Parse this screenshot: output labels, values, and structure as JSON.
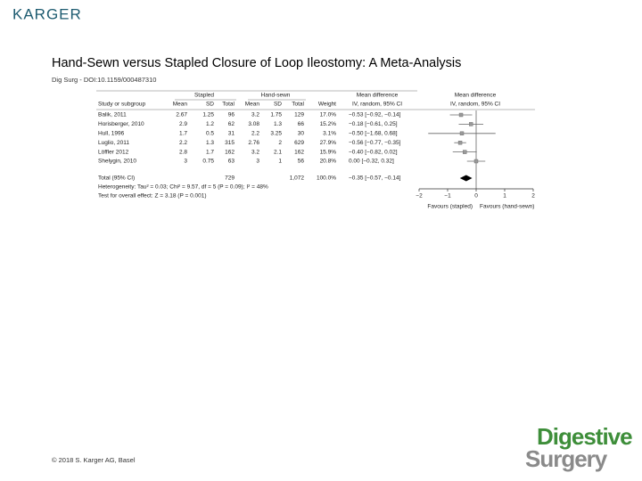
{
  "logo": "KARGER",
  "title": "Hand-Sewn versus Stapled Closure of Loop Ileostomy: A Meta-Analysis",
  "citation": "Dig Surg - DOI:10.1159/000487310",
  "forest": {
    "group_headers": [
      "Stapled",
      "Hand-sewn",
      "Mean difference",
      "Mean difference"
    ],
    "column_headers": [
      "Study or subgroup",
      "Mean",
      "SD",
      "Total",
      "Mean",
      "SD",
      "Total",
      "Weight",
      "IV, random, 95% CI",
      "IV, random, 95% CI"
    ],
    "rows": [
      [
        "Balik, 2011",
        "2.67",
        "1.25",
        "96",
        "3.2",
        "1.75",
        "129",
        "17.0%",
        "−0.53 [−0.92, −0.14]"
      ],
      [
        "Horisberger, 2010",
        "2.9",
        "1.2",
        "62",
        "3.08",
        "1.3",
        "66",
        "15.2%",
        "−0.18 [−0.61, 0.25]"
      ],
      [
        "Hull, 1996",
        "1.7",
        "0.5",
        "31",
        "2.2",
        "3.25",
        "30",
        "3.1%",
        "−0.50 [−1.68, 0.68]"
      ],
      [
        "Luglio, 2011",
        "2.2",
        "1.3",
        "315",
        "2.76",
        "2",
        "629",
        "27.9%",
        "−0.56 [−0.77, −0.35]"
      ],
      [
        "Löffler 2012",
        "2.8",
        "1.7",
        "162",
        "3.2",
        "2.1",
        "162",
        "15.9%",
        "−0.40 [−0.82, 0.02]"
      ],
      [
        "Shelygin, 2010",
        "3",
        "0.75",
        "63",
        "3",
        "1",
        "56",
        "20.8%",
        "0.00 [−0.32, 0.32]"
      ]
    ],
    "total_row": [
      "Total (95% CI)",
      "729",
      "1,072",
      "100.0%",
      "−0.35 [−0.57, −0.14]"
    ],
    "heterogeneity": "Heterogeneity: Tau² = 0.03; Chi² = 9.57, df = 5 (P = 0.09); I² = 48%",
    "overall_test": "Test for overall effect: Z = 3.18 (P = 0.001)",
    "plot": {
      "xlim": [
        -2,
        2
      ],
      "xticks": [
        {
          "value": -2,
          "label": "−2"
        },
        {
          "value": -1,
          "label": "−1"
        },
        0,
        1,
        2
      ],
      "estimates": [
        {
          "md": -0.53,
          "ci": [
            -0.92,
            -0.14
          ]
        },
        {
          "md": -0.18,
          "ci": [
            -0.61,
            0.25
          ]
        },
        {
          "md": -0.5,
          "ci": [
            -1.68,
            0.68
          ]
        },
        {
          "md": -0.56,
          "ci": [
            -0.77,
            -0.35
          ]
        },
        {
          "md": -0.4,
          "ci": [
            -0.82,
            0.02
          ]
        },
        {
          "md": 0.0,
          "ci": [
            -0.32,
            0.32
          ]
        }
      ],
      "overall": {
        "md": -0.35,
        "ci": [
          -0.57,
          -0.14
        ]
      },
      "favours_left": "Favours (stapled)",
      "favours_right": "Favours (hand-sewn)"
    }
  },
  "copyright": "© 2018 S. Karger AG, Basel",
  "journal_logo": [
    "Digestive",
    "Surgery"
  ]
}
